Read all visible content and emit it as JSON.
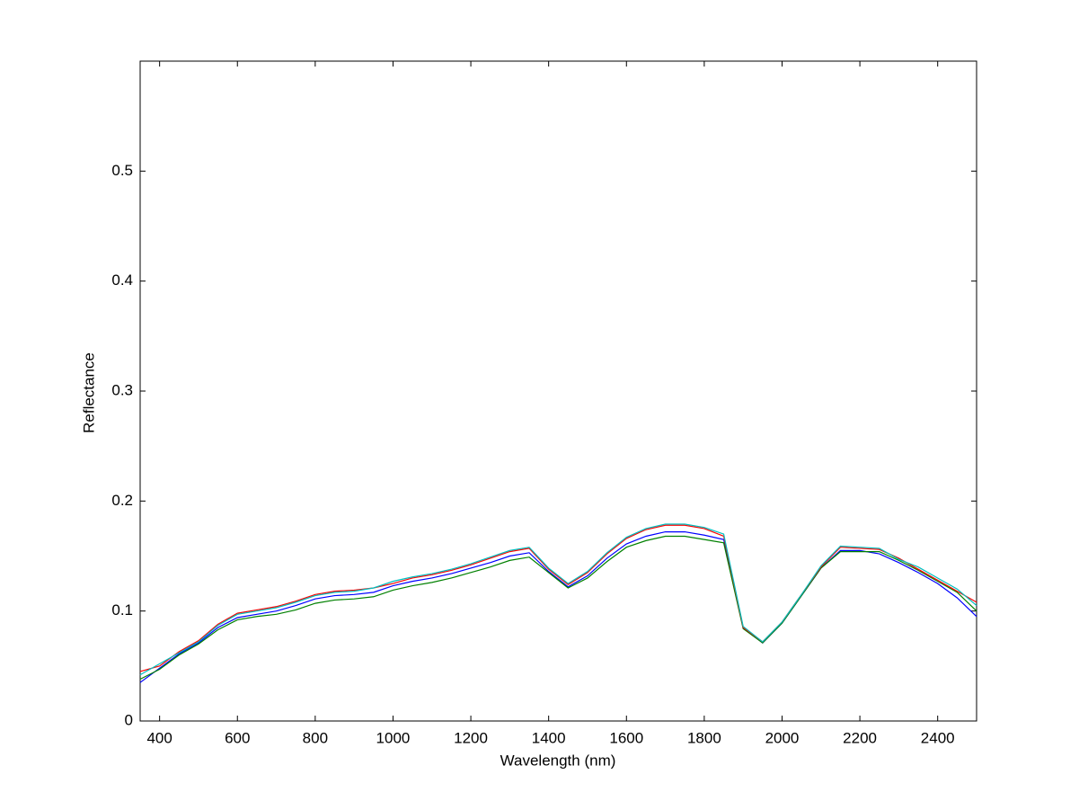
{
  "chart_data": {
    "type": "line",
    "x_label": "Wavelength (nm)",
    "y_label": "Reflectance",
    "x": [
      350,
      400,
      450,
      500,
      550,
      600,
      650,
      700,
      750,
      800,
      850,
      900,
      950,
      1000,
      1050,
      1100,
      1150,
      1200,
      1250,
      1300,
      1350,
      1400,
      1450,
      1500,
      1550,
      1600,
      1650,
      1700,
      1750,
      1800,
      1850,
      1900,
      1950,
      2000,
      2050,
      2100,
      2150,
      2200,
      2250,
      2300,
      2350,
      2400,
      2450,
      2500
    ],
    "series": [
      {
        "color": "#0000ff",
        "values": [
          0.035,
          0.048,
          0.061,
          0.071,
          0.085,
          0.094,
          0.097,
          0.1,
          0.105,
          0.111,
          0.114,
          0.115,
          0.117,
          0.123,
          0.127,
          0.13,
          0.134,
          0.139,
          0.144,
          0.15,
          0.153,
          0.136,
          0.122,
          0.132,
          0.148,
          0.161,
          0.168,
          0.172,
          0.172,
          0.169,
          0.165,
          0.085,
          0.071,
          0.089,
          0.114,
          0.139,
          0.155,
          0.155,
          0.152,
          0.144,
          0.135,
          0.125,
          0.112,
          0.095
        ]
      },
      {
        "color": "#008000",
        "values": [
          0.038,
          0.047,
          0.06,
          0.07,
          0.083,
          0.092,
          0.095,
          0.097,
          0.101,
          0.107,
          0.11,
          0.111,
          0.113,
          0.119,
          0.123,
          0.126,
          0.13,
          0.135,
          0.14,
          0.146,
          0.149,
          0.135,
          0.121,
          0.13,
          0.145,
          0.158,
          0.164,
          0.168,
          0.168,
          0.165,
          0.162,
          0.084,
          0.071,
          0.089,
          0.114,
          0.139,
          0.154,
          0.154,
          0.154,
          0.146,
          0.137,
          0.127,
          0.117,
          0.1
        ]
      },
      {
        "color": "#ff0000",
        "values": [
          0.045,
          0.05,
          0.063,
          0.073,
          0.088,
          0.098,
          0.101,
          0.104,
          0.109,
          0.115,
          0.118,
          0.119,
          0.121,
          0.125,
          0.13,
          0.133,
          0.137,
          0.142,
          0.148,
          0.154,
          0.157,
          0.138,
          0.124,
          0.135,
          0.152,
          0.166,
          0.174,
          0.178,
          0.178,
          0.175,
          0.168,
          0.085,
          0.072,
          0.09,
          0.115,
          0.14,
          0.158,
          0.157,
          0.156,
          0.148,
          0.138,
          0.128,
          0.118,
          0.108
        ]
      },
      {
        "color": "#00bfbf",
        "values": [
          0.042,
          0.052,
          0.062,
          0.072,
          0.087,
          0.097,
          0.1,
          0.103,
          0.108,
          0.114,
          0.117,
          0.118,
          0.121,
          0.127,
          0.131,
          0.134,
          0.138,
          0.143,
          0.149,
          0.155,
          0.158,
          0.139,
          0.125,
          0.136,
          0.153,
          0.167,
          0.175,
          0.179,
          0.179,
          0.176,
          0.17,
          0.086,
          0.072,
          0.09,
          0.115,
          0.141,
          0.159,
          0.158,
          0.157,
          0.147,
          0.14,
          0.13,
          0.12,
          0.105
        ]
      }
    ],
    "xlim": [
      350,
      2500
    ],
    "ylim": [
      0,
      0.6
    ],
    "xticks": [
      400,
      600,
      800,
      1000,
      1200,
      1400,
      1600,
      1800,
      2000,
      2200,
      2400
    ],
    "yticks": [
      0,
      0.1,
      0.2,
      0.3,
      0.4,
      0.5
    ],
    "grid": false
  }
}
